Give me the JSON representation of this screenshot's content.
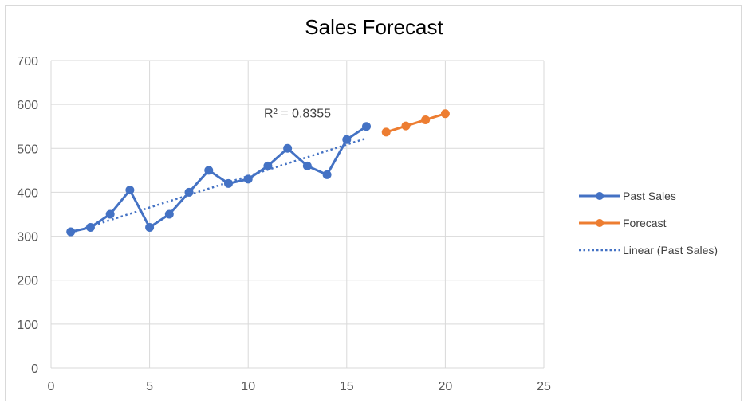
{
  "colors": {
    "past_sales": "#4472c4",
    "forecast": "#ed7d31",
    "gridline": "#d9d9d9",
    "tick_text": "#595959",
    "r2_text": "#404040"
  },
  "chart_data": {
    "type": "scatter",
    "title": "Sales Forecast",
    "xlabel": "",
    "ylabel": "",
    "xlim": [
      0,
      25
    ],
    "ylim": [
      0,
      700
    ],
    "x_ticks": [
      0,
      5,
      10,
      15,
      20,
      25
    ],
    "y_ticks": [
      0,
      100,
      200,
      300,
      400,
      500,
      600,
      700
    ],
    "grid": true,
    "legend_position": "right",
    "series": [
      {
        "name": "Past Sales",
        "style": "line-markers",
        "color": "#4472c4",
        "x": [
          1,
          2,
          3,
          4,
          5,
          6,
          7,
          8,
          9,
          10,
          11,
          12,
          13,
          14,
          15,
          16
        ],
        "y": [
          310,
          320,
          350,
          405,
          320,
          350,
          400,
          450,
          420,
          430,
          460,
          500,
          460,
          440,
          520,
          550
        ]
      },
      {
        "name": "Forecast",
        "style": "line-markers",
        "color": "#ed7d31",
        "x": [
          17,
          18,
          19,
          20
        ],
        "y": [
          537,
          551,
          565,
          579
        ]
      },
      {
        "name": "Linear (Past Sales)",
        "style": "dotted-trendline",
        "color": "#4472c4",
        "x": [
          1,
          16
        ],
        "y": [
          308,
          523
        ]
      }
    ],
    "annotations": [
      {
        "text": "R² = 0.8355",
        "x": 12.5,
        "y": 570
      }
    ]
  }
}
